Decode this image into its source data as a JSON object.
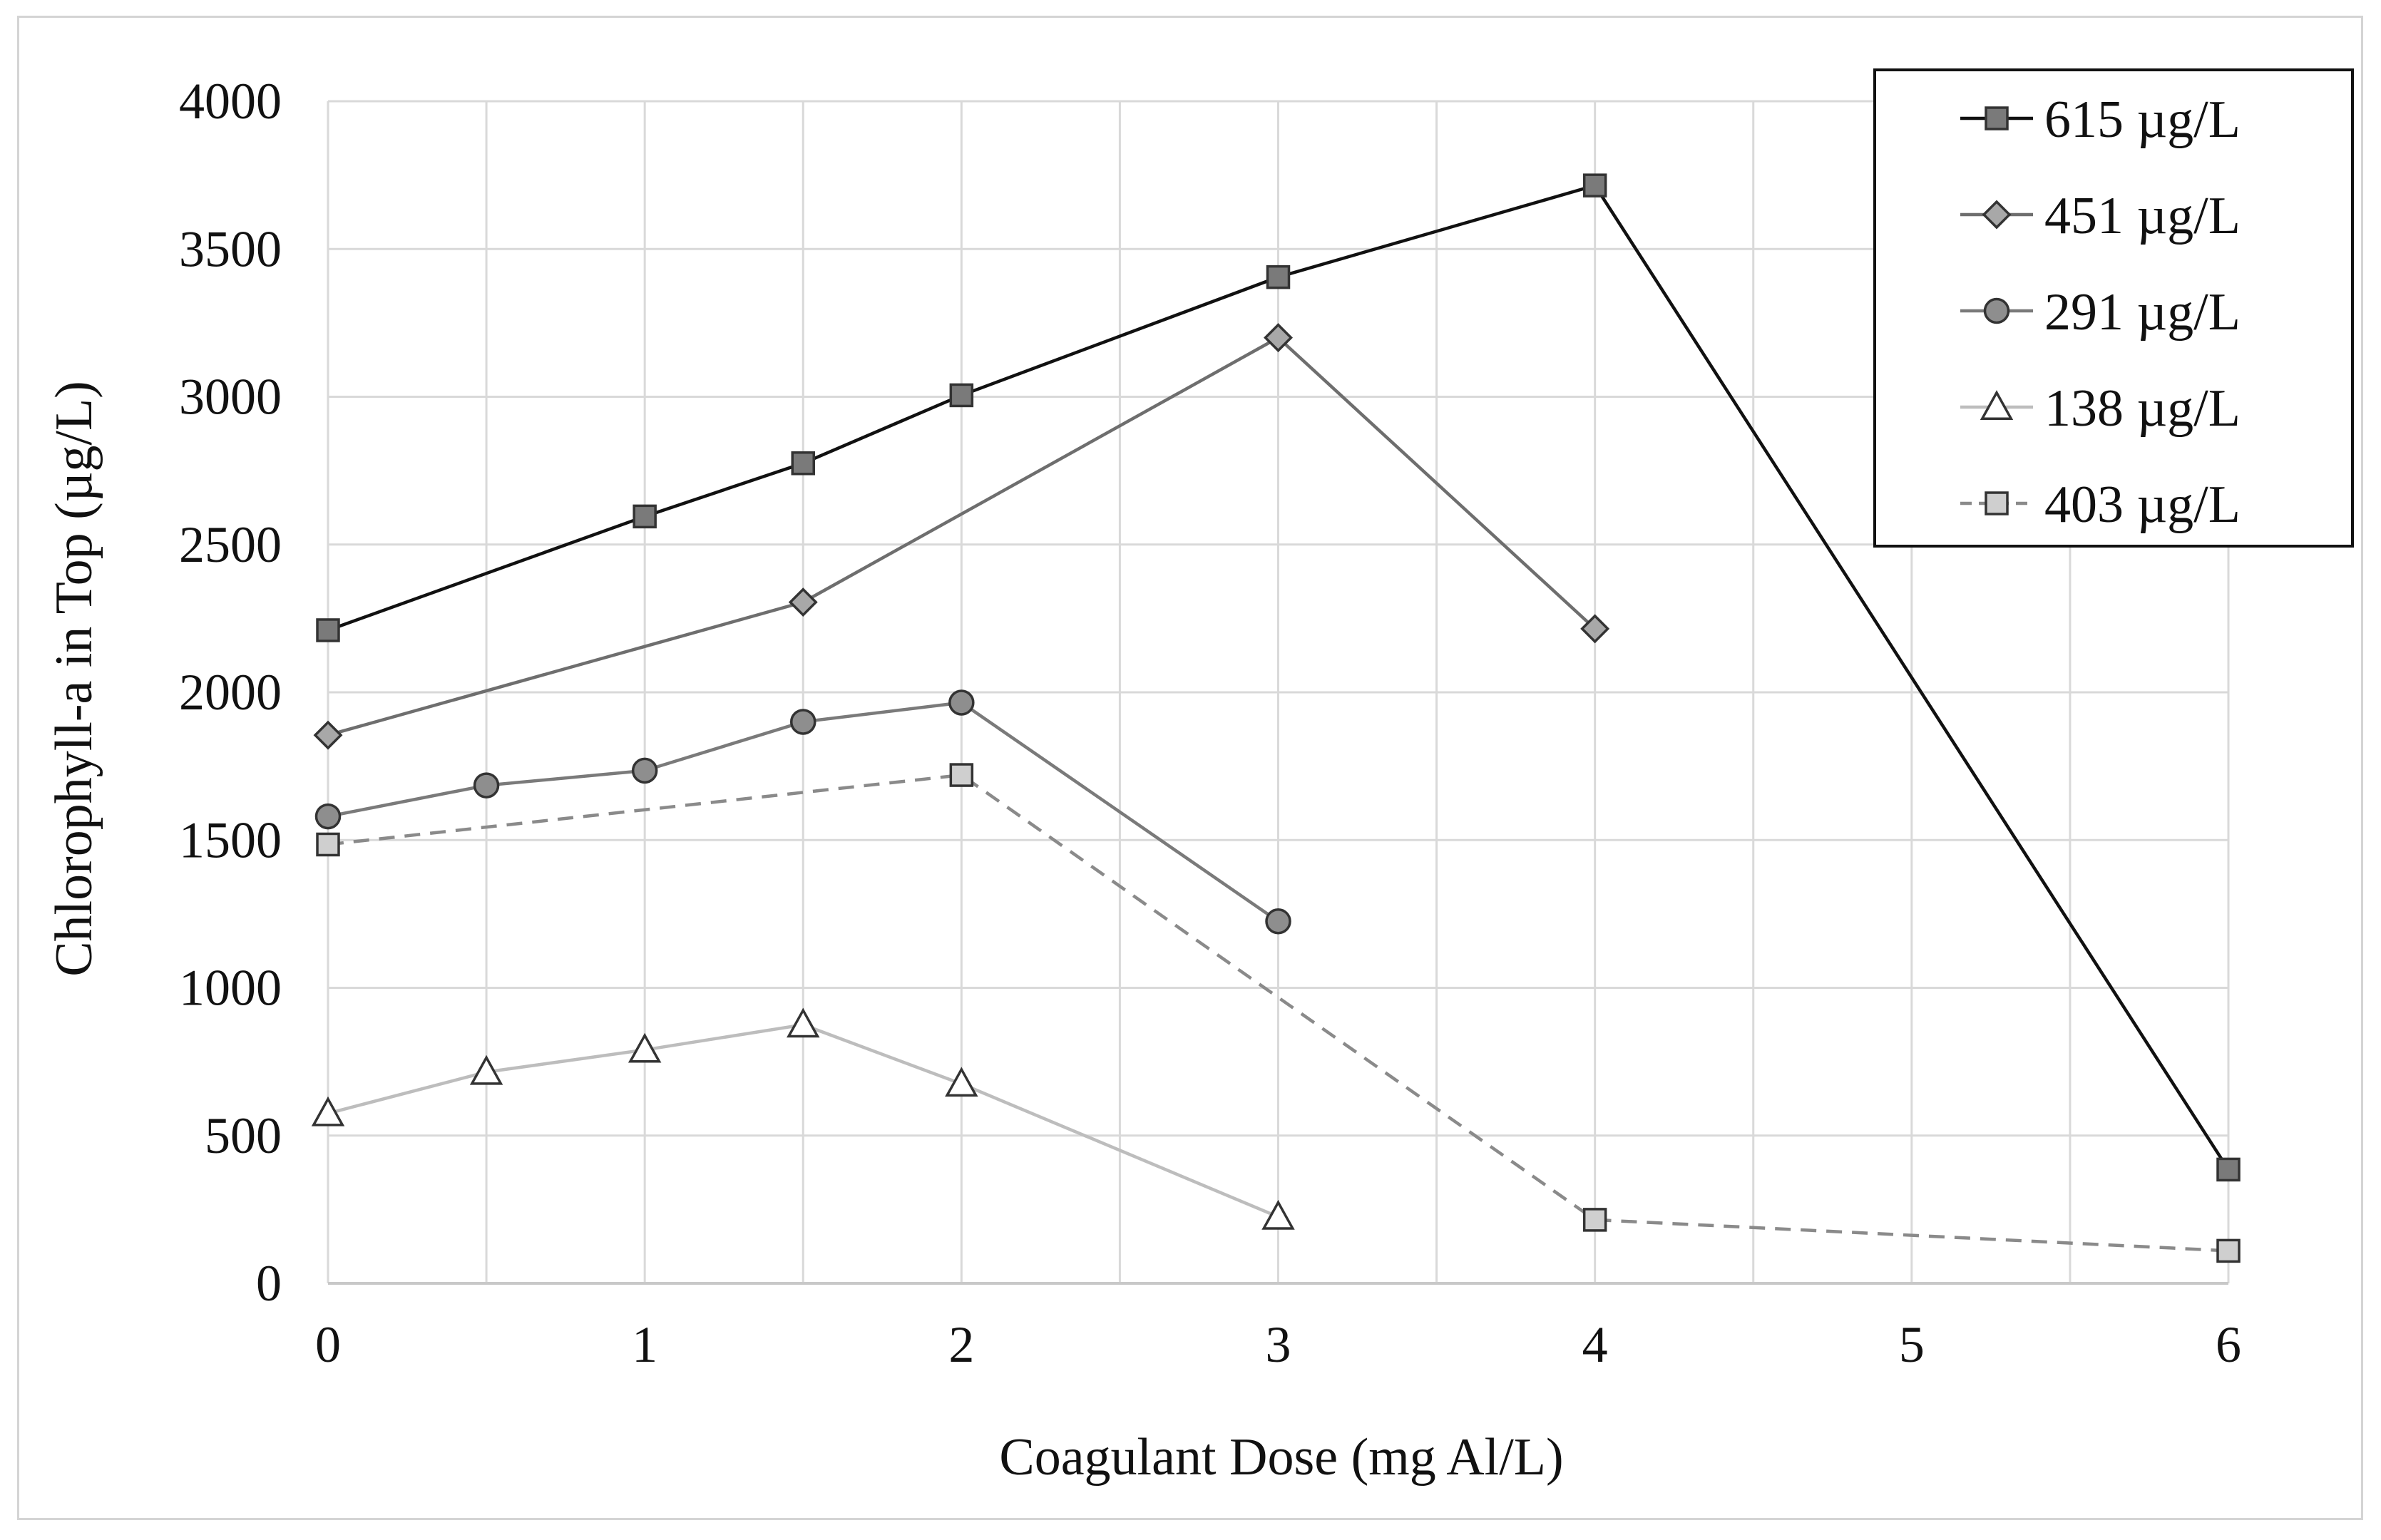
{
  "chart_data": {
    "type": "line",
    "title": "",
    "xlabel": "Coagulant Dose (mg Al/L)",
    "ylabel": "Chlorophyll-a in Top (µg/L)",
    "xlim": [
      0,
      6
    ],
    "ylim": [
      0,
      4000
    ],
    "x_ticks": [
      0,
      1,
      2,
      3,
      4,
      5,
      6
    ],
    "y_ticks": [
      0,
      500,
      1000,
      1500,
      2000,
      2500,
      3000,
      3500,
      4000
    ],
    "grid": true,
    "legend_position": "top-right",
    "series": [
      {
        "name": "615 µg/L",
        "marker": "square",
        "line_style": "solid",
        "line_color": "#111111",
        "marker_fill": "#7a7a7a",
        "x": [
          0,
          1,
          1.5,
          2,
          3,
          4,
          6
        ],
        "y": [
          2210,
          2595,
          2775,
          3005,
          3405,
          3715,
          385
        ]
      },
      {
        "name": "451 µg/L",
        "marker": "diamond",
        "line_style": "solid",
        "line_color": "#6e6e6e",
        "marker_fill": "#a8a8a8",
        "x": [
          0,
          1.5,
          3,
          4
        ],
        "y": [
          1855,
          2305,
          3200,
          2215
        ]
      },
      {
        "name": "291 µg/L",
        "marker": "circle",
        "line_style": "solid",
        "line_color": "#7a7a7a",
        "marker_fill": "#8e8e8e",
        "x": [
          0,
          0.5,
          1,
          1.5,
          2,
          3
        ],
        "y": [
          1580,
          1685,
          1735,
          1900,
          1965,
          1225
        ]
      },
      {
        "name": "138 µg/L",
        "marker": "triangle",
        "line_style": "solid",
        "line_color": "#bdbdbd",
        "marker_fill": "#ffffff",
        "x": [
          0,
          0.5,
          1,
          1.5,
          2,
          3
        ],
        "y": [
          575,
          715,
          790,
          875,
          675,
          225
        ]
      },
      {
        "name": "403 µg/L",
        "marker": "square",
        "line_style": "dashed",
        "line_color": "#8a8a8a",
        "marker_fill": "#cfcfcf",
        "x": [
          0,
          2,
          4,
          6
        ],
        "y": [
          1485,
          1720,
          215,
          110
        ]
      }
    ]
  }
}
